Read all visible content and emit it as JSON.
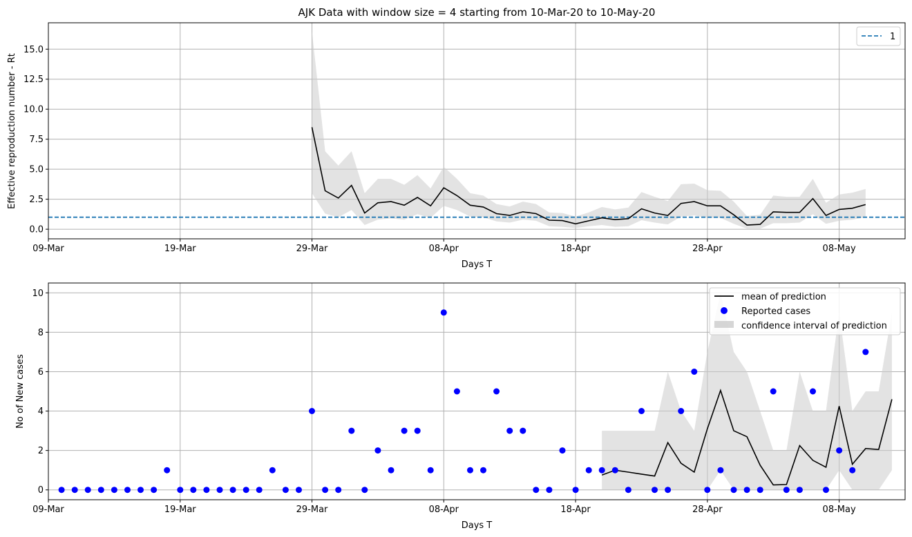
{
  "chart_data": [
    {
      "type": "line",
      "title": "AJK Data with window size = 4 starting from 10-Mar-20 to 10-May-20",
      "xlabel": "Days T",
      "ylabel": "Effective reproduction number - Rt",
      "xlim": [
        "2020-03-09",
        "2020-05-13"
      ],
      "ylim": [
        -0.8,
        17.2
      ],
      "xticks": [
        "09-Mar",
        "19-Mar",
        "29-Mar",
        "08-Apr",
        "18-Apr",
        "28-Apr",
        "08-May"
      ],
      "xtick_dates": [
        "2020-03-09",
        "2020-03-19",
        "2020-03-29",
        "2020-04-08",
        "2020-04-18",
        "2020-04-28",
        "2020-05-08"
      ],
      "yticks": [
        "0.0",
        "2.5",
        "5.0",
        "7.5",
        "10.0",
        "12.5",
        "15.0"
      ],
      "ytick_values": [
        0,
        2.5,
        5,
        7.5,
        10,
        12.5,
        15
      ],
      "grid": true,
      "legend": {
        "placement": "top-right",
        "entries": [
          "1"
        ]
      },
      "reference_line": {
        "name": "1",
        "y": 1,
        "color": "#1f77b4",
        "style": "dashed"
      },
      "start_date": "2020-03-29",
      "rt_mean": [
        8.5,
        3.2,
        2.6,
        3.65,
        1.35,
        2.2,
        2.3,
        2.0,
        2.65,
        1.95,
        3.45,
        2.8,
        2.0,
        1.85,
        1.3,
        1.15,
        1.45,
        1.3,
        0.75,
        0.72,
        0.45,
        0.7,
        0.95,
        0.8,
        0.88,
        1.7,
        1.35,
        1.15,
        2.15,
        2.3,
        1.95,
        1.95,
        1.2,
        0.35,
        0.4,
        1.45,
        1.4,
        1.4,
        2.55,
        1.15,
        1.65,
        1.75,
        2.05
      ],
      "rt_upper": [
        16.5,
        6.5,
        5.3,
        6.5,
        3.0,
        4.2,
        4.2,
        3.7,
        4.5,
        3.4,
        5.2,
        4.2,
        3.0,
        2.8,
        2.1,
        1.9,
        2.3,
        2.1,
        1.4,
        1.35,
        1.05,
        1.4,
        1.85,
        1.65,
        1.8,
        3.1,
        2.7,
        2.35,
        3.75,
        3.8,
        3.25,
        3.2,
        2.3,
        1.1,
        1.2,
        2.8,
        2.7,
        2.7,
        4.2,
        2.2,
        2.9,
        3.05,
        3.35
      ],
      "rt_lower": [
        3.0,
        1.3,
        1.0,
        1.6,
        0.35,
        0.8,
        0.9,
        0.8,
        1.25,
        0.95,
        1.95,
        1.6,
        1.05,
        1.0,
        0.65,
        0.55,
        0.8,
        0.7,
        0.25,
        0.2,
        0.1,
        0.25,
        0.35,
        0.2,
        0.25,
        0.75,
        0.55,
        0.4,
        1.05,
        1.15,
        0.95,
        0.95,
        0.45,
        0.05,
        0.05,
        0.5,
        0.5,
        0.55,
        1.25,
        0.45,
        0.7,
        0.8,
        1.0
      ],
      "colors": {
        "mean": "#000000",
        "band": "#cccccc"
      }
    },
    {
      "type": "scatter",
      "title": "",
      "xlabel": "Days T",
      "ylabel": "No of New cases",
      "xlim": [
        "2020-03-09",
        "2020-05-13"
      ],
      "ylim": [
        -0.5,
        10.5
      ],
      "xticks": [
        "09-Mar",
        "19-Mar",
        "29-Mar",
        "08-Apr",
        "18-Apr",
        "28-Apr",
        "08-May"
      ],
      "xtick_dates": [
        "2020-03-09",
        "2020-03-19",
        "2020-03-29",
        "2020-04-08",
        "2020-04-18",
        "2020-04-28",
        "2020-05-08"
      ],
      "yticks": [
        "0",
        "2",
        "4",
        "6",
        "8",
        "10"
      ],
      "ytick_values": [
        0,
        2,
        4,
        6,
        8,
        10
      ],
      "grid": true,
      "legend": {
        "placement": "top-right",
        "entries": [
          "mean of prediction",
          "Reported cases",
          "confidence interval of prediction"
        ]
      },
      "cases_start": "2020-03-10",
      "reported_cases": [
        0,
        0,
        0,
        0,
        0,
        0,
        0,
        0,
        1,
        0,
        0,
        0,
        0,
        0,
        0,
        0,
        1,
        0,
        0,
        4,
        0,
        0,
        3,
        0,
        2,
        1,
        3,
        3,
        1,
        9,
        5,
        1,
        1,
        5,
        3,
        3,
        0,
        0,
        2,
        0,
        1,
        1,
        1,
        0,
        4,
        0,
        0,
        4,
        6,
        0,
        1,
        0,
        0,
        0,
        5,
        0,
        0,
        5,
        0,
        2,
        1,
        7
      ],
      "prediction_start": "2020-04-20",
      "pred_mean": [
        0.75,
        1.0,
        0.9,
        0.8,
        0.7,
        2.4,
        1.35,
        0.9,
        3.1,
        5.05,
        3.0,
        2.7,
        1.25,
        0.25,
        0.27,
        2.25,
        1.5,
        1.15,
        4.25,
        1.3,
        2.1,
        2.05,
        4.6
      ],
      "pred_upper": [
        3,
        3,
        3,
        3,
        3,
        6,
        4,
        3,
        7,
        10,
        7,
        6,
        4,
        2,
        2,
        6,
        4,
        4,
        9,
        4,
        5,
        5,
        9
      ],
      "pred_lower": [
        0,
        0,
        0,
        0,
        0,
        0,
        0,
        0,
        0,
        1,
        0,
        0,
        0,
        0,
        0,
        0,
        0,
        0,
        1,
        0,
        0,
        0,
        1
      ],
      "colors": {
        "mean": "#000000",
        "points": "#0000ff",
        "band": "#cccccc"
      }
    }
  ]
}
